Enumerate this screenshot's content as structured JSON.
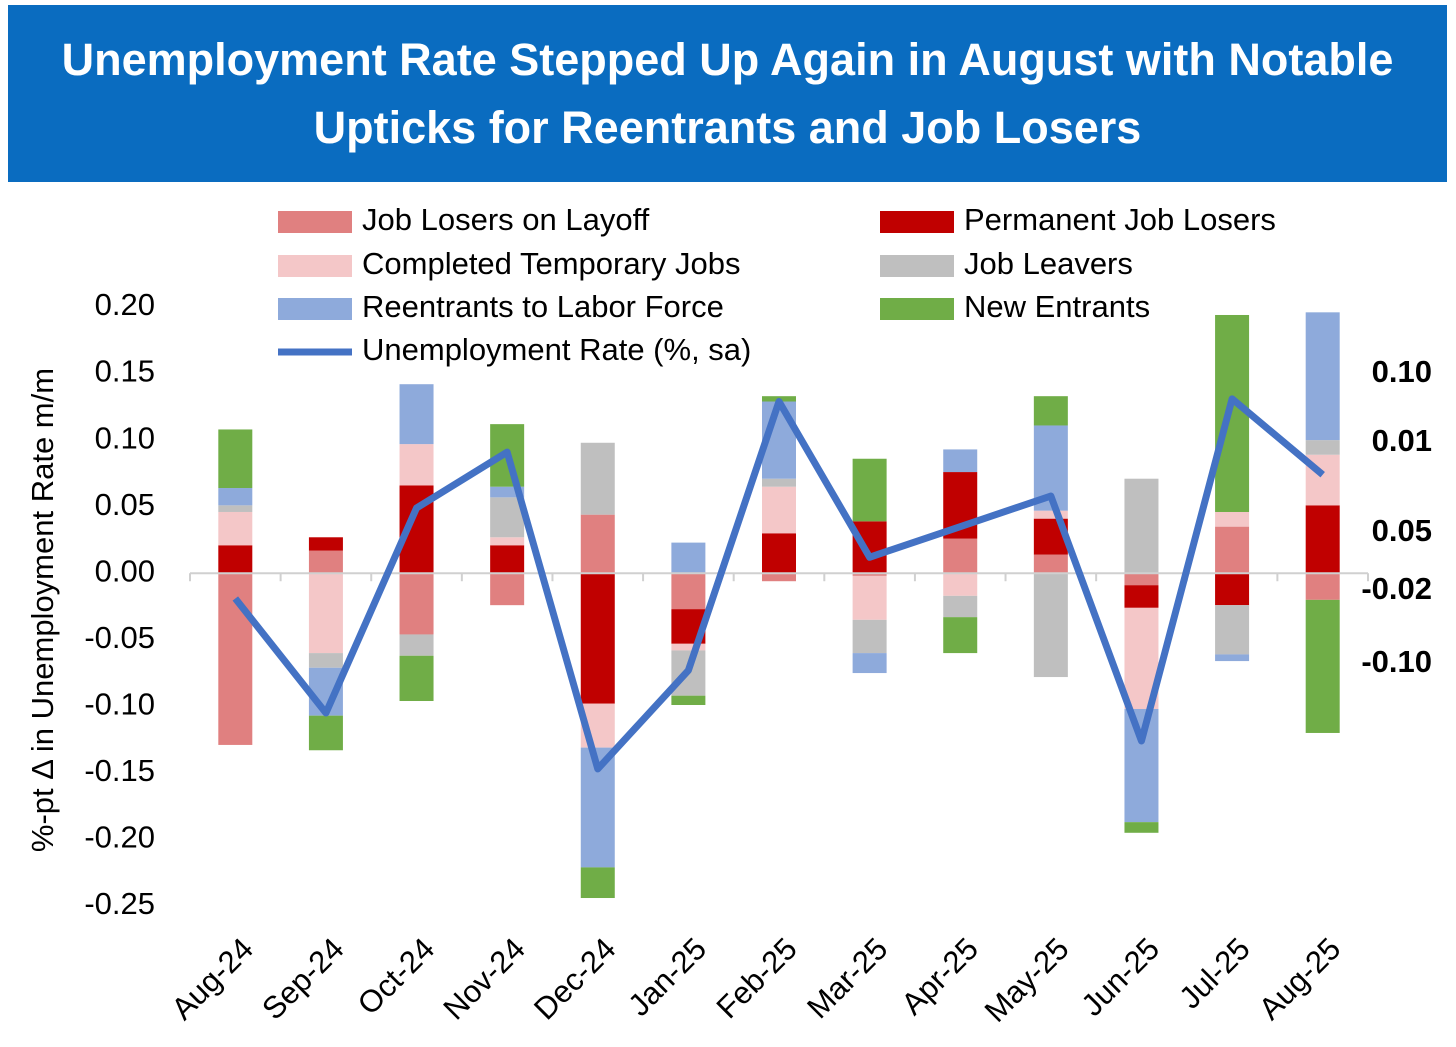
{
  "chart_data": {
    "type": "stacked-bar-line",
    "title": "Unemployment Rate Stepped Up Again in August with Notable Upticks for Reentrants and Job Losers",
    "y_label": "%-pt Δ in Unemployment Rate m/m",
    "categories": [
      "Aug-24",
      "Sep-24",
      "Oct-24",
      "Nov-24",
      "Dec-24",
      "Jan-25",
      "Feb-25",
      "Mar-25",
      "Apr-25",
      "May-25",
      "Jun-25",
      "Jul-25",
      "Aug-25"
    ],
    "series": [
      {
        "name": "Job Losers on Layoff",
        "color": "#e08080",
        "values": [
          -0.129,
          0.017,
          -0.046,
          -0.024,
          0.044,
          -0.027,
          -0.006,
          -0.002,
          0.026,
          0.014,
          -0.009,
          0.035,
          -0.02
        ]
      },
      {
        "name": "Permanent Job Losers",
        "color": "#c00000",
        "values": [
          0.021,
          0.01,
          0.066,
          0.021,
          -0.098,
          -0.026,
          0.03,
          0.039,
          0.05,
          0.027,
          -0.017,
          -0.024,
          0.051
        ]
      },
      {
        "name": "Completed Temporary Jobs",
        "color": "#f4c7c8",
        "values": [
          0.025,
          -0.06,
          0.031,
          0.006,
          -0.033,
          -0.005,
          0.035,
          -0.033,
          -0.017,
          0.006,
          -0.076,
          0.011,
          0.038
        ]
      },
      {
        "name": "Job Leavers",
        "color": "#bfbfbf",
        "values": [
          0.005,
          -0.011,
          -0.016,
          0.03,
          0.054,
          -0.034,
          0.006,
          -0.025,
          -0.016,
          -0.078,
          0.071,
          -0.037,
          0.011
        ]
      },
      {
        "name": "Reentrants to Labor Force",
        "color": "#8eaadb",
        "values": [
          0.013,
          -0.036,
          0.045,
          0.008,
          -0.09,
          0.023,
          0.058,
          -0.015,
          0.017,
          0.064,
          -0.085,
          -0.005,
          0.096
        ]
      },
      {
        "name": "New Entrants",
        "color": "#70ad47",
        "values": [
          0.044,
          -0.026,
          -0.034,
          0.047,
          -0.023,
          -0.007,
          0.004,
          0.047,
          -0.027,
          0.022,
          -0.008,
          0.148,
          -0.1
        ]
      }
    ],
    "line": {
      "name": "Unemployment Rate (%, sa)",
      "color": "#4472c4",
      "values": [
        -0.019,
        -0.105,
        0.049,
        0.091,
        -0.147,
        -0.073,
        0.129,
        0.012,
        0.035,
        0.058,
        -0.126,
        0.131,
        0.074
      ]
    },
    "ylim": [
      -0.25,
      0.2
    ],
    "yticks": [
      {
        "value": -0.25,
        "label": "-0.25"
      },
      {
        "value": -0.2,
        "label": "-0.20"
      },
      {
        "value": -0.15,
        "label": "-0.15"
      },
      {
        "value": -0.1,
        "label": "-0.10"
      },
      {
        "value": -0.05,
        "label": "-0.05"
      },
      {
        "value": 0,
        "label": "0.00"
      },
      {
        "value": 0.05,
        "label": "0.05"
      },
      {
        "value": 0.1,
        "label": "0.10"
      },
      {
        "value": 0.15,
        "label": "0.15"
      },
      {
        "value": 0.2,
        "label": "0.20"
      }
    ],
    "annotations": [
      {
        "text": "0.10",
        "color": "#8eaadb"
      },
      {
        "text": "0.01",
        "color": "#bfbfbf"
      },
      {
        "text": "0.05",
        "color": "#c00000"
      },
      {
        "text": "-0.02",
        "color": "#e08080"
      },
      {
        "text": "-0.10",
        "color": "#70ad47"
      }
    ]
  }
}
